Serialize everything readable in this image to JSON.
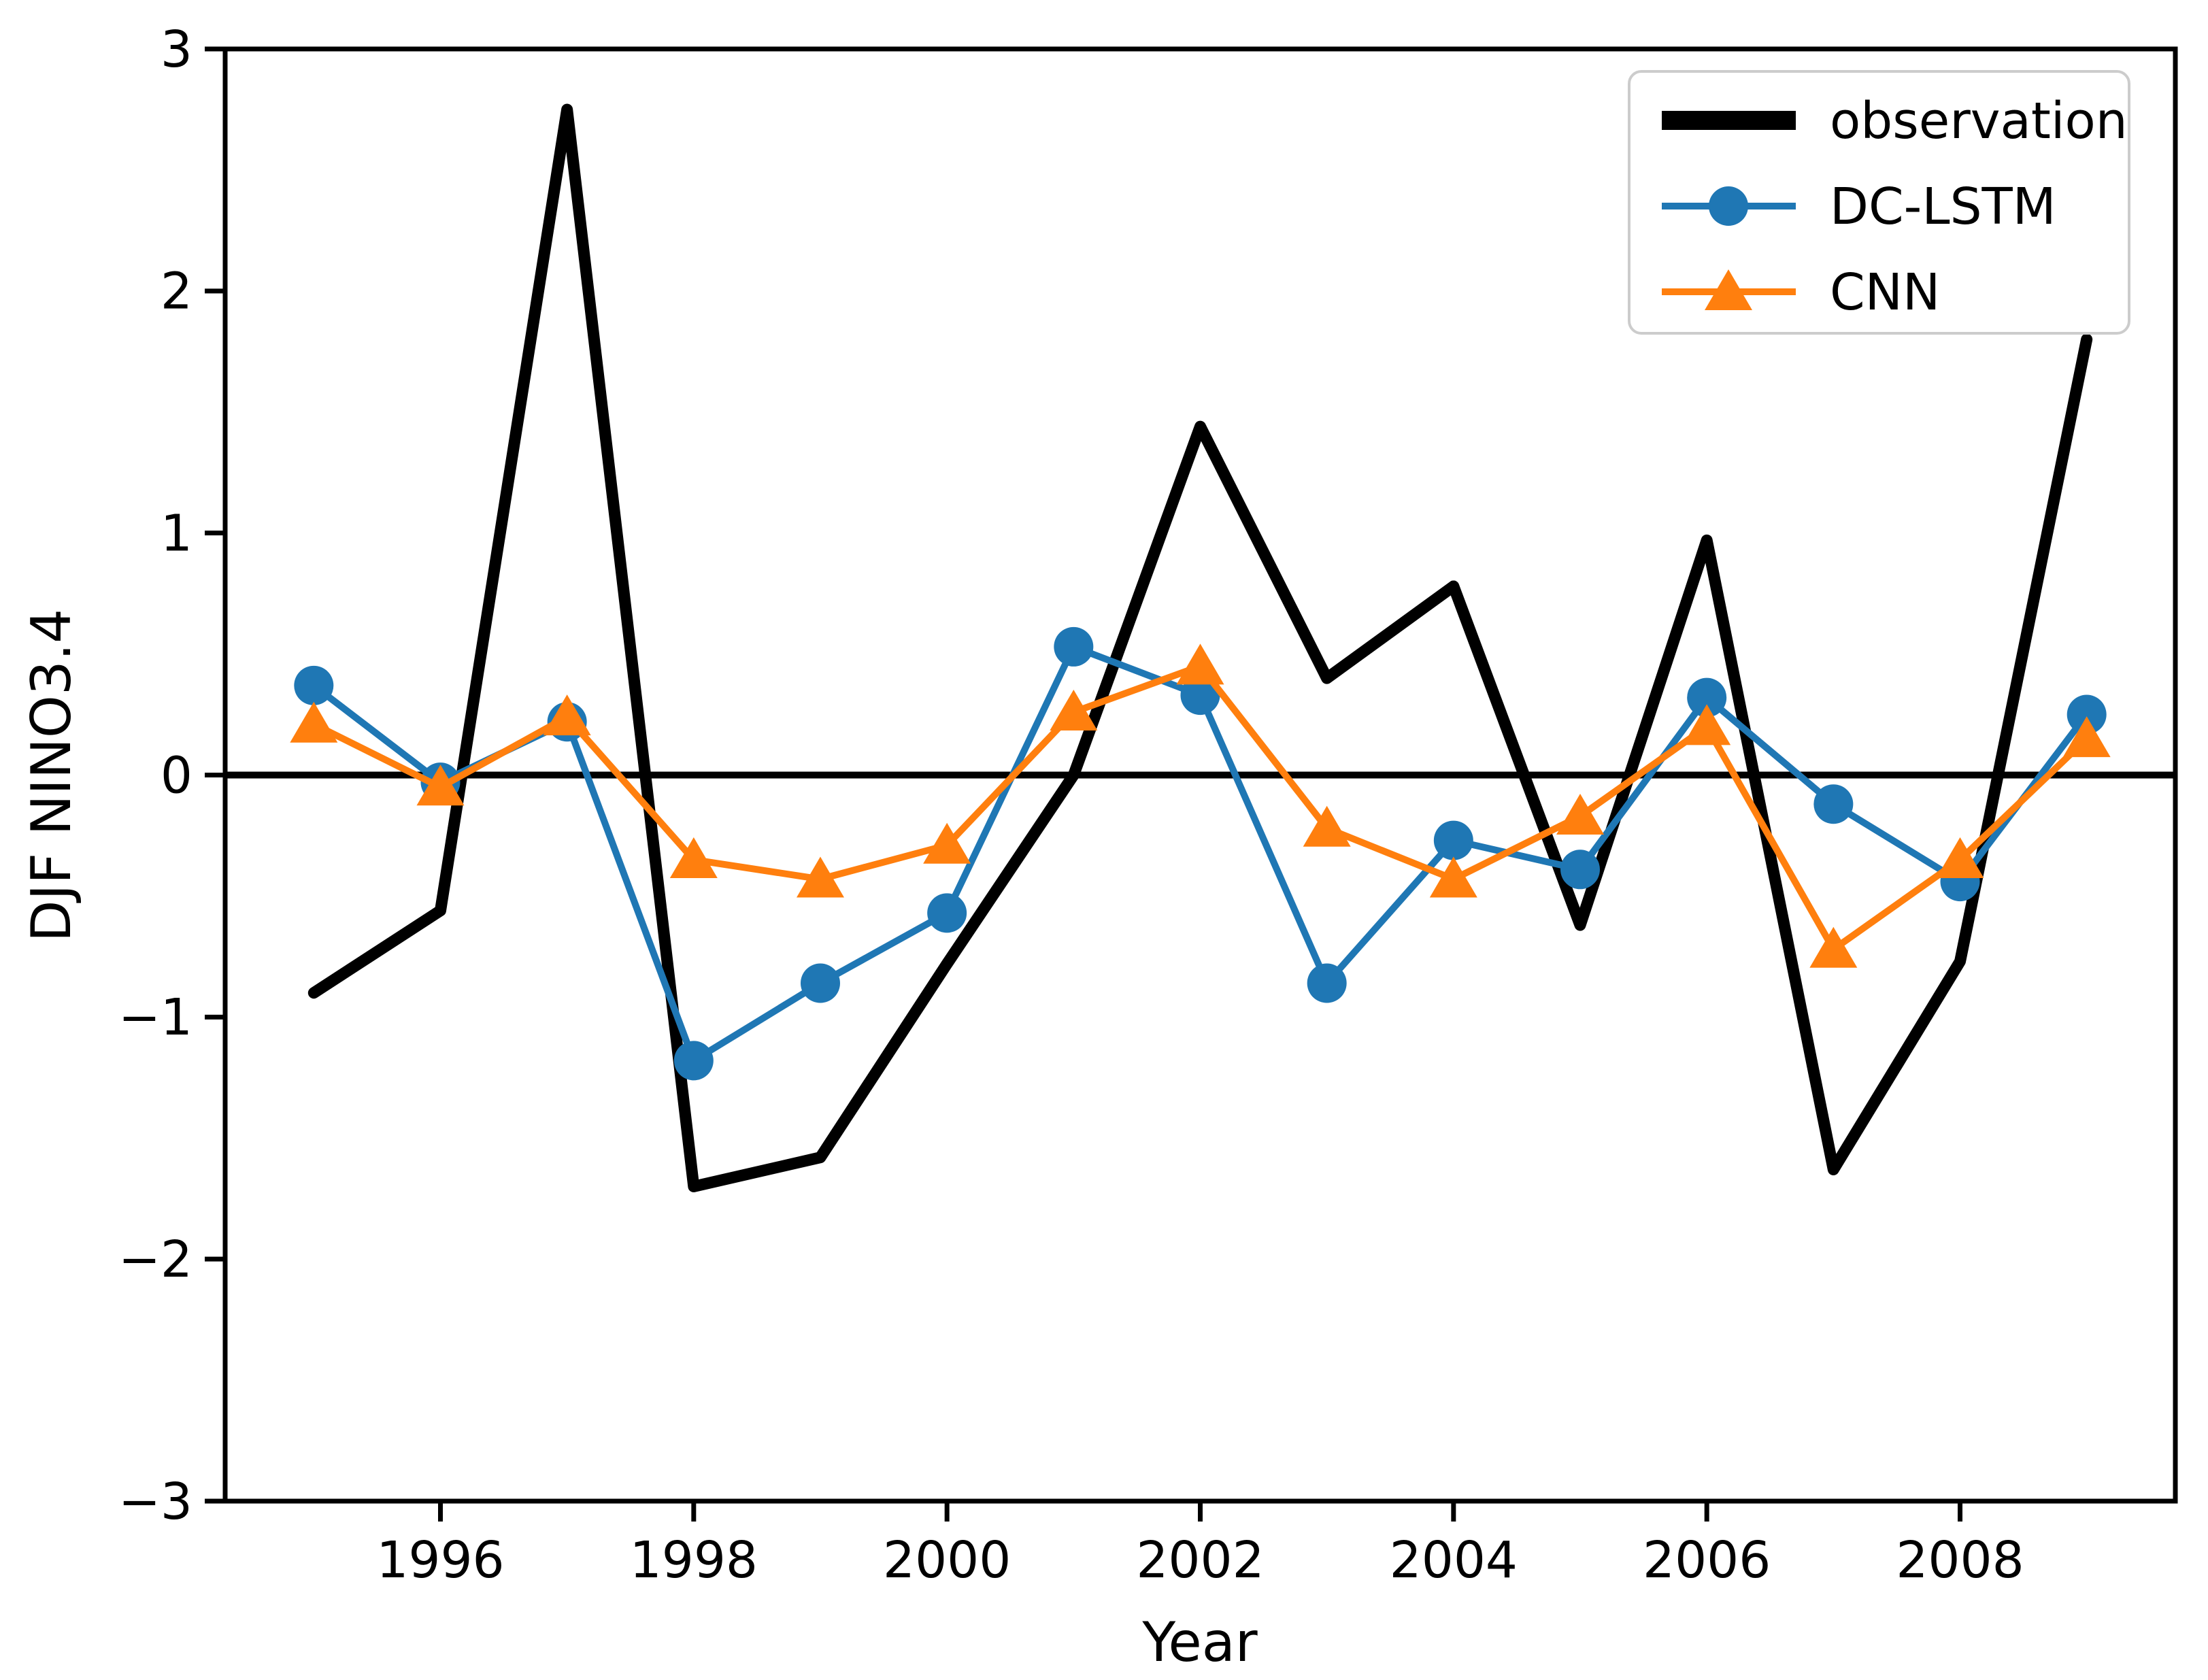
{
  "figure": {
    "background": "#ffffff",
    "spine_color": "#000000"
  },
  "legend": {
    "position": "upper right",
    "border_color": "#cccccc",
    "fill_color": "#ffffff",
    "entries": [
      "observation",
      "DC-LSTM",
      "CNN"
    ]
  },
  "chart_data": {
    "type": "line",
    "title": "",
    "xlabel": "Year",
    "ylabel": "DJF NINO3.4",
    "xlim": [
      1994.3,
      2009.7
    ],
    "ylim": [
      -3,
      3
    ],
    "grid": false,
    "zero_line": true,
    "legend_position": "upper right",
    "xticks": {
      "values": [
        1996,
        1998,
        2000,
        2002,
        2004,
        2006,
        2008
      ],
      "labels": [
        "1996",
        "1998",
        "2000",
        "2002",
        "2004",
        "2006",
        "2008"
      ]
    },
    "yticks": {
      "values": [
        -3,
        -2,
        -1,
        0,
        1,
        2,
        3
      ],
      "labels": [
        "−3",
        "−2",
        "−1",
        "0",
        "1",
        "2",
        "3"
      ]
    },
    "x": [
      1995,
      1996,
      1997,
      1998,
      1999,
      2000,
      2001,
      2002,
      2003,
      2004,
      2005,
      2006,
      2007,
      2008,
      2009
    ],
    "series": [
      {
        "name": "observation",
        "color": "#000000",
        "linewidth": 17,
        "marker": "none",
        "values": [
          -0.9,
          -0.56,
          2.75,
          -1.7,
          -1.58,
          -0.78,
          0.0,
          1.44,
          0.4,
          0.78,
          -0.62,
          0.97,
          -1.63,
          -0.77,
          1.8
        ]
      },
      {
        "name": "DC-LSTM",
        "color": "#1f77b4",
        "linewidth": 10,
        "marker": "circle",
        "values": [
          0.37,
          -0.03,
          0.22,
          -1.18,
          -0.86,
          -0.57,
          0.53,
          0.33,
          -0.86,
          -0.27,
          -0.39,
          0.32,
          -0.12,
          -0.44,
          0.25
        ]
      },
      {
        "name": "CNN",
        "color": "#ff7f0e",
        "linewidth": 10,
        "marker": "triangle",
        "values": [
          0.21,
          -0.05,
          0.24,
          -0.35,
          -0.43,
          -0.29,
          0.26,
          0.45,
          -0.22,
          -0.43,
          -0.17,
          0.2,
          -0.72,
          -0.35,
          0.15
        ]
      }
    ]
  }
}
